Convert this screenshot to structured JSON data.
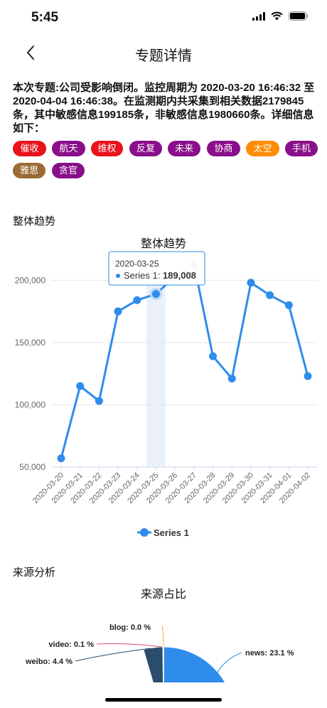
{
  "status_bar": {
    "time": "5:45"
  },
  "nav": {
    "title": "专题详情"
  },
  "summary": "本次专题:公司受影响倒闭。监控周期为 2020-03-20 16:46:32 至 2020-04-04 16:46:38。在监测期内共采集到相关数据2179845条，其中敏感信息199185条，非敏感信息1980660条。详细信息如下：",
  "tags": [
    {
      "label": "催收",
      "color": "#e8131b"
    },
    {
      "label": "航天",
      "color": "#8a0f8a"
    },
    {
      "label": "维权",
      "color": "#e8131b"
    },
    {
      "label": "反复",
      "color": "#8a0f8a"
    },
    {
      "label": "未来",
      "color": "#8a0f8a"
    },
    {
      "label": "协商",
      "color": "#8a0f8a"
    },
    {
      "label": "太空",
      "color": "#ff8c00"
    },
    {
      "label": "手机",
      "color": "#8a0f8a"
    },
    {
      "label": "雅思",
      "color": "#9b6a35"
    },
    {
      "label": "贪官",
      "color": "#8a0f8a"
    }
  ],
  "trend_section": {
    "title": "整体趋势"
  },
  "source_section": {
    "title": "来源分析"
  },
  "chart_data": [
    {
      "type": "line",
      "title": "整体趋势",
      "x": [
        "2020-03-20",
        "2020-03-21",
        "2020-03-22",
        "2020-03-23",
        "2020-03-24",
        "2020-03-25",
        "2020-03-26",
        "2020-03-27",
        "2020-03-28",
        "2020-03-29",
        "2020-03-30",
        "2020-03-31",
        "2020-04-01",
        "2020-04-02"
      ],
      "series": [
        {
          "name": "Series 1",
          "values": [
            57000,
            115000,
            103000,
            175000,
            184000,
            189008,
            203000,
            213000,
            139000,
            121000,
            198000,
            188000,
            180000,
            123000
          ],
          "color": "#2f8ceb"
        }
      ],
      "yticks": [
        "50,000",
        "100,000",
        "150,000",
        "200,000"
      ],
      "ylim": [
        50000,
        215000
      ],
      "grid": true,
      "legend": "bottom",
      "tooltip": {
        "date": "2020-03-25",
        "series": "Series 1",
        "value": "189,008",
        "label": "Series 1: "
      }
    },
    {
      "type": "pie",
      "title": "来源占比",
      "slices": [
        {
          "name": "news",
          "label": "news: 23.1 %",
          "value": 23.1,
          "color": "#2f8ceb"
        },
        {
          "name": "weibo",
          "label": "weibo: 4.4 %",
          "value": 4.4,
          "color": "#2a4d6e"
        },
        {
          "name": "video",
          "label": "video: 0.1 %",
          "value": 0.1,
          "color": "#e04a6b"
        },
        {
          "name": "blog",
          "label": "blog: 0.0 %",
          "value": 0.0,
          "color": "#f2b53a"
        }
      ]
    }
  ]
}
